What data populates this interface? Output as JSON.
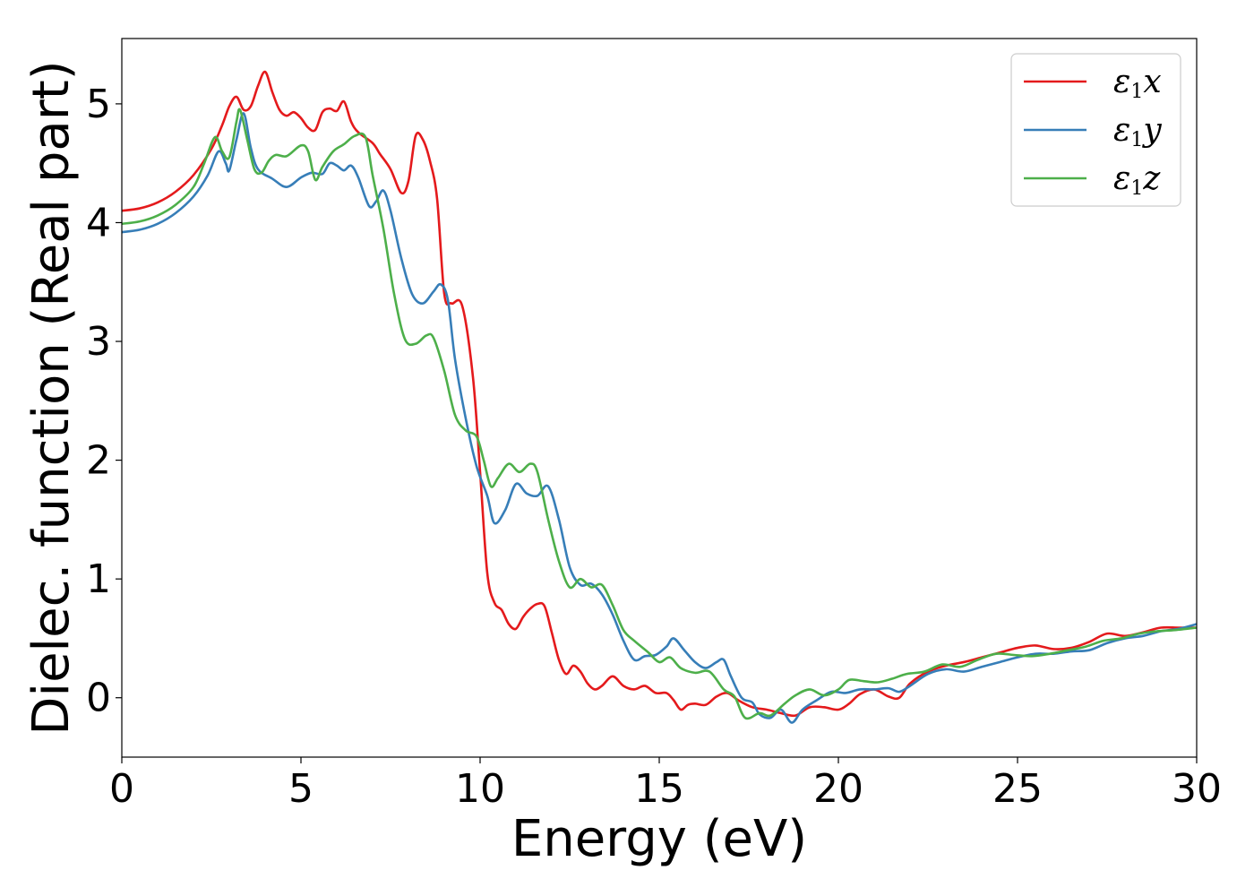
{
  "chart_data": {
    "type": "line",
    "xlabel": "Energy (eV)",
    "ylabel": "Dielec. function (Real part)",
    "xlim": [
      0,
      30
    ],
    "ylim": [
      -0.5,
      5.55
    ],
    "xticks": [
      0,
      5,
      10,
      15,
      20,
      25,
      30
    ],
    "xtick_labels": [
      "0",
      "5",
      "10",
      "15",
      "20",
      "25",
      "30"
    ],
    "yticks": [
      0,
      1,
      2,
      3,
      4,
      5
    ],
    "ytick_labels": [
      "0",
      "1",
      "2",
      "3",
      "4",
      "5"
    ],
    "grid": false,
    "legend_position": "top-right",
    "series": [
      {
        "name": "ε1x",
        "legend_main": "ε",
        "legend_sub": "1",
        "legend_var": "x",
        "color": "#e41a1c",
        "points": [
          [
            0,
            4.1
          ],
          [
            0.5,
            4.12
          ],
          [
            1.0,
            4.17
          ],
          [
            1.5,
            4.26
          ],
          [
            2.0,
            4.4
          ],
          [
            2.5,
            4.62
          ],
          [
            2.8,
            4.82
          ],
          [
            3.0,
            4.98
          ],
          [
            3.2,
            5.06
          ],
          [
            3.4,
            4.95
          ],
          [
            3.6,
            4.98
          ],
          [
            3.8,
            5.15
          ],
          [
            4.0,
            5.27
          ],
          [
            4.2,
            5.1
          ],
          [
            4.4,
            4.95
          ],
          [
            4.6,
            4.9
          ],
          [
            4.8,
            4.93
          ],
          [
            5.0,
            4.88
          ],
          [
            5.2,
            4.8
          ],
          [
            5.4,
            4.78
          ],
          [
            5.6,
            4.93
          ],
          [
            5.8,
            4.96
          ],
          [
            6.0,
            4.94
          ],
          [
            6.2,
            5.02
          ],
          [
            6.4,
            4.85
          ],
          [
            6.6,
            4.76
          ],
          [
            7.0,
            4.67
          ],
          [
            7.2,
            4.58
          ],
          [
            7.5,
            4.45
          ],
          [
            7.8,
            4.25
          ],
          [
            8.0,
            4.35
          ],
          [
            8.2,
            4.73
          ],
          [
            8.4,
            4.7
          ],
          [
            8.6,
            4.52
          ],
          [
            8.8,
            4.2
          ],
          [
            9.0,
            3.4
          ],
          [
            9.2,
            3.32
          ],
          [
            9.5,
            3.3
          ],
          [
            9.8,
            2.7
          ],
          [
            10.0,
            1.9
          ],
          [
            10.2,
            1.05
          ],
          [
            10.4,
            0.8
          ],
          [
            10.6,
            0.74
          ],
          [
            10.8,
            0.62
          ],
          [
            11.0,
            0.58
          ],
          [
            11.2,
            0.68
          ],
          [
            11.4,
            0.75
          ],
          [
            11.6,
            0.79
          ],
          [
            11.8,
            0.77
          ],
          [
            12.0,
            0.55
          ],
          [
            12.2,
            0.32
          ],
          [
            12.4,
            0.2
          ],
          [
            12.6,
            0.27
          ],
          [
            12.8,
            0.22
          ],
          [
            13.0,
            0.12
          ],
          [
            13.2,
            0.07
          ],
          [
            13.4,
            0.1
          ],
          [
            13.7,
            0.18
          ],
          [
            14.0,
            0.1
          ],
          [
            14.3,
            0.07
          ],
          [
            14.6,
            0.1
          ],
          [
            14.9,
            0.04
          ],
          [
            15.2,
            0.04
          ],
          [
            15.4,
            -0.02
          ],
          [
            15.6,
            -0.1
          ],
          [
            15.8,
            -0.06
          ],
          [
            16.0,
            -0.05
          ],
          [
            16.3,
            -0.06
          ],
          [
            16.6,
            0.01
          ],
          [
            16.9,
            0.04
          ],
          [
            17.2,
            -0.02
          ],
          [
            17.6,
            -0.08
          ],
          [
            18.0,
            -0.1
          ],
          [
            18.4,
            -0.13
          ],
          [
            18.8,
            -0.15
          ],
          [
            19.2,
            -0.08
          ],
          [
            19.6,
            -0.08
          ],
          [
            20.0,
            -0.1
          ],
          [
            20.3,
            -0.05
          ],
          [
            20.6,
            0.03
          ],
          [
            21.0,
            0.07
          ],
          [
            21.4,
            0.01
          ],
          [
            21.7,
            0.0
          ],
          [
            22.0,
            0.12
          ],
          [
            22.5,
            0.22
          ],
          [
            23.0,
            0.27
          ],
          [
            23.5,
            0.3
          ],
          [
            24.0,
            0.34
          ],
          [
            24.5,
            0.38
          ],
          [
            25.0,
            0.42
          ],
          [
            25.5,
            0.44
          ],
          [
            26.0,
            0.41
          ],
          [
            26.5,
            0.42
          ],
          [
            27.0,
            0.47
          ],
          [
            27.5,
            0.54
          ],
          [
            28.0,
            0.52
          ],
          [
            28.5,
            0.55
          ],
          [
            29.0,
            0.59
          ],
          [
            29.5,
            0.59
          ],
          [
            30.0,
            0.59
          ]
        ]
      },
      {
        "name": "ε1y",
        "legend_main": "ε",
        "legend_sub": "1",
        "legend_var": "y",
        "color": "#377eb8",
        "points": [
          [
            0,
            3.92
          ],
          [
            0.5,
            3.94
          ],
          [
            1.0,
            3.99
          ],
          [
            1.5,
            4.08
          ],
          [
            2.0,
            4.22
          ],
          [
            2.4,
            4.4
          ],
          [
            2.7,
            4.6
          ],
          [
            2.9,
            4.5
          ],
          [
            3.0,
            4.44
          ],
          [
            3.2,
            4.7
          ],
          [
            3.4,
            4.92
          ],
          [
            3.6,
            4.63
          ],
          [
            3.8,
            4.45
          ],
          [
            4.2,
            4.37
          ],
          [
            4.6,
            4.3
          ],
          [
            5.0,
            4.38
          ],
          [
            5.3,
            4.42
          ],
          [
            5.6,
            4.41
          ],
          [
            5.8,
            4.5
          ],
          [
            6.0,
            4.48
          ],
          [
            6.2,
            4.44
          ],
          [
            6.4,
            4.48
          ],
          [
            6.6,
            4.38
          ],
          [
            6.9,
            4.14
          ],
          [
            7.1,
            4.18
          ],
          [
            7.3,
            4.27
          ],
          [
            7.5,
            4.1
          ],
          [
            7.8,
            3.7
          ],
          [
            8.1,
            3.4
          ],
          [
            8.4,
            3.32
          ],
          [
            8.7,
            3.42
          ],
          [
            8.9,
            3.48
          ],
          [
            9.1,
            3.35
          ],
          [
            9.3,
            2.85
          ],
          [
            9.6,
            2.35
          ],
          [
            9.9,
            1.95
          ],
          [
            10.2,
            1.7
          ],
          [
            10.4,
            1.47
          ],
          [
            10.7,
            1.58
          ],
          [
            11.0,
            1.8
          ],
          [
            11.3,
            1.72
          ],
          [
            11.6,
            1.7
          ],
          [
            11.9,
            1.78
          ],
          [
            12.2,
            1.5
          ],
          [
            12.5,
            1.1
          ],
          [
            12.8,
            0.95
          ],
          [
            13.1,
            0.96
          ],
          [
            13.4,
            0.87
          ],
          [
            13.7,
            0.7
          ],
          [
            14.0,
            0.48
          ],
          [
            14.3,
            0.32
          ],
          [
            14.6,
            0.35
          ],
          [
            14.9,
            0.36
          ],
          [
            15.2,
            0.43
          ],
          [
            15.4,
            0.5
          ],
          [
            15.7,
            0.4
          ],
          [
            16.0,
            0.3
          ],
          [
            16.3,
            0.25
          ],
          [
            16.6,
            0.3
          ],
          [
            16.8,
            0.32
          ],
          [
            17.0,
            0.18
          ],
          [
            17.3,
            0.0
          ],
          [
            17.6,
            -0.04
          ],
          [
            17.8,
            -0.14
          ],
          [
            18.1,
            -0.17
          ],
          [
            18.4,
            -0.1
          ],
          [
            18.7,
            -0.21
          ],
          [
            19.0,
            -0.1
          ],
          [
            19.4,
            -0.02
          ],
          [
            19.8,
            0.05
          ],
          [
            20.2,
            0.04
          ],
          [
            20.6,
            0.07
          ],
          [
            21.0,
            0.07
          ],
          [
            21.4,
            0.08
          ],
          [
            21.7,
            0.05
          ],
          [
            22.0,
            0.1
          ],
          [
            22.5,
            0.2
          ],
          [
            23.0,
            0.24
          ],
          [
            23.5,
            0.22
          ],
          [
            24.0,
            0.26
          ],
          [
            24.5,
            0.3
          ],
          [
            25.0,
            0.34
          ],
          [
            25.5,
            0.37
          ],
          [
            26.0,
            0.37
          ],
          [
            26.5,
            0.39
          ],
          [
            27.0,
            0.4
          ],
          [
            27.5,
            0.46
          ],
          [
            28.0,
            0.5
          ],
          [
            28.5,
            0.52
          ],
          [
            29.0,
            0.56
          ],
          [
            29.5,
            0.58
          ],
          [
            30.0,
            0.62
          ]
        ]
      },
      {
        "name": "ε1z",
        "legend_main": "ε",
        "legend_sub": "1",
        "legend_var": "z",
        "color": "#4daf4a",
        "points": [
          [
            0,
            3.99
          ],
          [
            0.5,
            4.01
          ],
          [
            1.0,
            4.06
          ],
          [
            1.5,
            4.15
          ],
          [
            2.0,
            4.3
          ],
          [
            2.3,
            4.5
          ],
          [
            2.6,
            4.72
          ],
          [
            2.8,
            4.6
          ],
          [
            3.0,
            4.55
          ],
          [
            3.2,
            4.85
          ],
          [
            3.3,
            4.95
          ],
          [
            3.5,
            4.7
          ],
          [
            3.7,
            4.45
          ],
          [
            3.9,
            4.42
          ],
          [
            4.1,
            4.52
          ],
          [
            4.3,
            4.57
          ],
          [
            4.6,
            4.56
          ],
          [
            5.0,
            4.65
          ],
          [
            5.2,
            4.6
          ],
          [
            5.4,
            4.36
          ],
          [
            5.6,
            4.47
          ],
          [
            5.9,
            4.6
          ],
          [
            6.2,
            4.66
          ],
          [
            6.5,
            4.73
          ],
          [
            6.8,
            4.72
          ],
          [
            7.0,
            4.4
          ],
          [
            7.3,
            3.95
          ],
          [
            7.6,
            3.4
          ],
          [
            7.9,
            3.02
          ],
          [
            8.2,
            2.98
          ],
          [
            8.5,
            3.05
          ],
          [
            8.7,
            3.03
          ],
          [
            9.0,
            2.75
          ],
          [
            9.3,
            2.38
          ],
          [
            9.6,
            2.25
          ],
          [
            9.9,
            2.2
          ],
          [
            10.1,
            2.0
          ],
          [
            10.3,
            1.78
          ],
          [
            10.5,
            1.85
          ],
          [
            10.8,
            1.97
          ],
          [
            11.1,
            1.9
          ],
          [
            11.4,
            1.97
          ],
          [
            11.6,
            1.9
          ],
          [
            11.9,
            1.5
          ],
          [
            12.2,
            1.15
          ],
          [
            12.5,
            0.93
          ],
          [
            12.8,
            1.0
          ],
          [
            13.1,
            0.93
          ],
          [
            13.4,
            0.95
          ],
          [
            13.7,
            0.78
          ],
          [
            14.0,
            0.57
          ],
          [
            14.3,
            0.48
          ],
          [
            14.7,
            0.38
          ],
          [
            15.0,
            0.3
          ],
          [
            15.3,
            0.34
          ],
          [
            15.6,
            0.25
          ],
          [
            16.0,
            0.21
          ],
          [
            16.4,
            0.22
          ],
          [
            16.8,
            0.07
          ],
          [
            17.1,
            0.01
          ],
          [
            17.4,
            -0.17
          ],
          [
            17.8,
            -0.13
          ],
          [
            18.1,
            -0.15
          ],
          [
            18.5,
            -0.05
          ],
          [
            18.8,
            0.02
          ],
          [
            19.2,
            0.07
          ],
          [
            19.6,
            0.02
          ],
          [
            20.0,
            0.07
          ],
          [
            20.3,
            0.15
          ],
          [
            20.7,
            0.14
          ],
          [
            21.1,
            0.13
          ],
          [
            21.5,
            0.16
          ],
          [
            21.9,
            0.2
          ],
          [
            22.4,
            0.22
          ],
          [
            22.9,
            0.28
          ],
          [
            23.4,
            0.26
          ],
          [
            23.9,
            0.32
          ],
          [
            24.4,
            0.37
          ],
          [
            24.9,
            0.36
          ],
          [
            25.4,
            0.35
          ],
          [
            25.9,
            0.37
          ],
          [
            26.4,
            0.4
          ],
          [
            26.9,
            0.43
          ],
          [
            27.4,
            0.48
          ],
          [
            27.9,
            0.5
          ],
          [
            28.4,
            0.54
          ],
          [
            28.9,
            0.56
          ],
          [
            29.4,
            0.57
          ],
          [
            30.0,
            0.59
          ]
        ]
      }
    ]
  }
}
